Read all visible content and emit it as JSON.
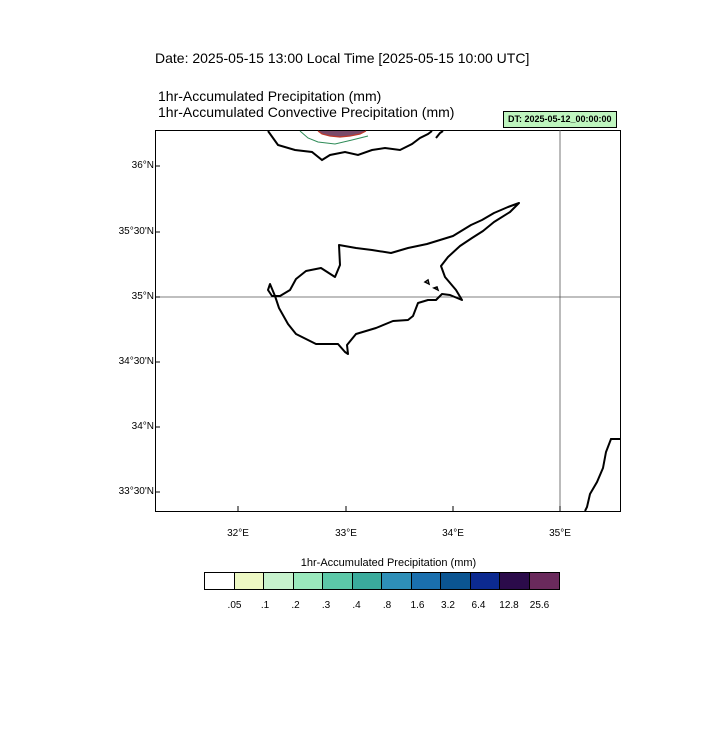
{
  "title": "Date: 2025-05-15  13:00 Local Time [2025-05-15  10:00 UTC]",
  "subtitle_1": "1hr-Accumulated Precipitation   (mm)",
  "subtitle_2": "1hr-Accumulated Convective Precipitation   (mm)",
  "dt_badge": "DT: 2025-05-12_00:00:00",
  "lat_labels": [
    "36°N",
    "35°30'N",
    "35°N",
    "34°30'N",
    "34°N",
    "33°30'N"
  ],
  "lon_labels": [
    "32°E",
    "33°E",
    "34°E",
    "35°E"
  ],
  "colorbar": {
    "title": "1hr-Accumulated Precipitation  (mm)",
    "labels": [
      ".05",
      ".1",
      ".2",
      ".3",
      ".4",
      ".8",
      "1.6",
      "3.2",
      "6.4",
      "12.8",
      "25.6"
    ],
    "colors": [
      "#ffffff",
      "#edf8c4",
      "#c7f2cd",
      "#9ae9bd",
      "#5cc8a8",
      "#3aab9c",
      "#2e8fb8",
      "#1a6fae",
      "#0b5592",
      "#0c2a90",
      "#2b0b4a",
      "#6a2a5c"
    ]
  }
}
